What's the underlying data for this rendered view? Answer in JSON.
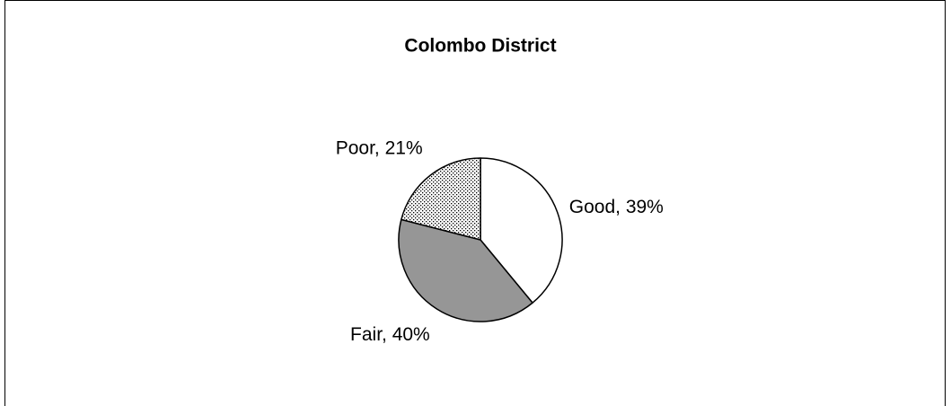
{
  "chart_data": {
    "type": "pie",
    "title": "Colombo District",
    "values": [
      39,
      40,
      21
    ],
    "value_labels": [
      "Good, 39%",
      "Fair, 40%",
      "Poor, 21%"
    ],
    "colors": [
      "#ffffff",
      "#969696",
      "#ffffff"
    ],
    "patterns": [
      null,
      null,
      "dots"
    ]
  }
}
